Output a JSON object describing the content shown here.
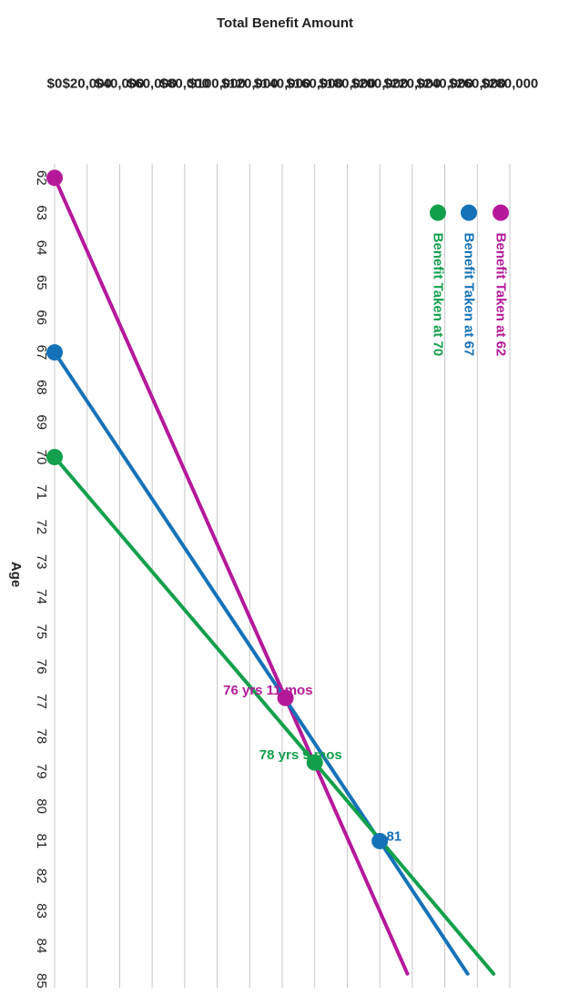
{
  "chart_data": {
    "type": "line",
    "title": "Total Benefit Amount",
    "xlabel": "Age",
    "ylabel": "",
    "x_ticks": [
      62,
      63,
      64,
      65,
      66,
      67,
      68,
      69,
      70,
      71,
      72,
      73,
      74,
      75,
      76,
      77,
      78,
      79,
      80,
      81,
      82,
      83,
      84,
      85
    ],
    "xlim": [
      61.6,
      85.2
    ],
    "y_ticks": [
      0,
      20000,
      40000,
      60000,
      80000,
      100000,
      120000,
      140000,
      160000,
      180000,
      200000,
      220000,
      240000,
      260000,
      280000
    ],
    "y_tick_labels": [
      "$0",
      "$20,000",
      "$40,000",
      "$60,000",
      "$80,000",
      "$100,000",
      "$120,000",
      "$140,000",
      "$160,000",
      "$180,000",
      "$200,000",
      "$220,000",
      "$240,000",
      "$260,000",
      "$280,000"
    ],
    "ylim": [
      0,
      280000
    ],
    "grid": true,
    "legend_position": "top-left",
    "series": [
      {
        "name": "Benefit Taken at 62",
        "color": "#b5199a",
        "points": [
          [
            62,
            0
          ],
          [
            76.9,
            142000
          ],
          [
            84.8,
            217000
          ]
        ]
      },
      {
        "name": "Benefit Taken at 67",
        "color": "#1672b8",
        "points": [
          [
            67,
            0
          ],
          [
            81,
            200000
          ],
          [
            84.8,
            254000
          ]
        ]
      },
      {
        "name": "Benefit Taken at 70",
        "color": "#13a04c",
        "points": [
          [
            70,
            0
          ],
          [
            78.75,
            160000
          ],
          [
            84.8,
            270000
          ]
        ]
      }
    ],
    "markers": [
      {
        "series": 0,
        "x": 62,
        "y": 0
      },
      {
        "series": 1,
        "x": 67,
        "y": 0
      },
      {
        "series": 2,
        "x": 70,
        "y": 0
      },
      {
        "series": 0,
        "x": 76.9,
        "y": 142000
      },
      {
        "series": 2,
        "x": 78.75,
        "y": 160000
      },
      {
        "series": 1,
        "x": 81,
        "y": 200000
      }
    ],
    "annotations": [
      {
        "text": "76 yrs 11 mos",
        "x": 76.9,
        "y": 142000,
        "color": "#b5199a"
      },
      {
        "text": "78 yrs 9 mos",
        "x": 78.75,
        "y": 160000,
        "color": "#13a04c"
      },
      {
        "text": "81",
        "x": 81,
        "y": 200000,
        "color": "#1672b8"
      }
    ]
  }
}
